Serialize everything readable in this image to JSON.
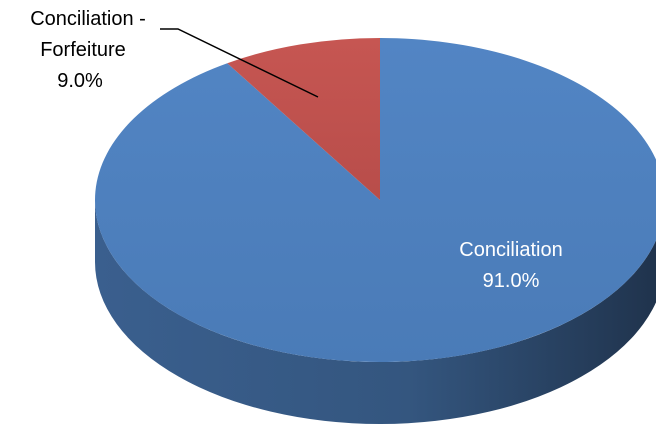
{
  "chart_data": {
    "type": "pie",
    "style": "3d",
    "title": "",
    "slices": [
      {
        "label": "Conciliation",
        "value": 91.0,
        "value_label": "91.0%",
        "color": "#4F81BD"
      },
      {
        "label": "Conciliation - Forfeiture",
        "value": 9.0,
        "value_label": "9.0%",
        "color": "#C0504D"
      }
    ],
    "legend": "none",
    "data_labels": "category and percentage"
  },
  "labels": {
    "conciliation_name": "Conciliation",
    "conciliation_value": "91.0%",
    "forfeiture_name_line1": "Conciliation -",
    "forfeiture_name_line2": "Forfeiture",
    "forfeiture_value": "9.0%"
  }
}
